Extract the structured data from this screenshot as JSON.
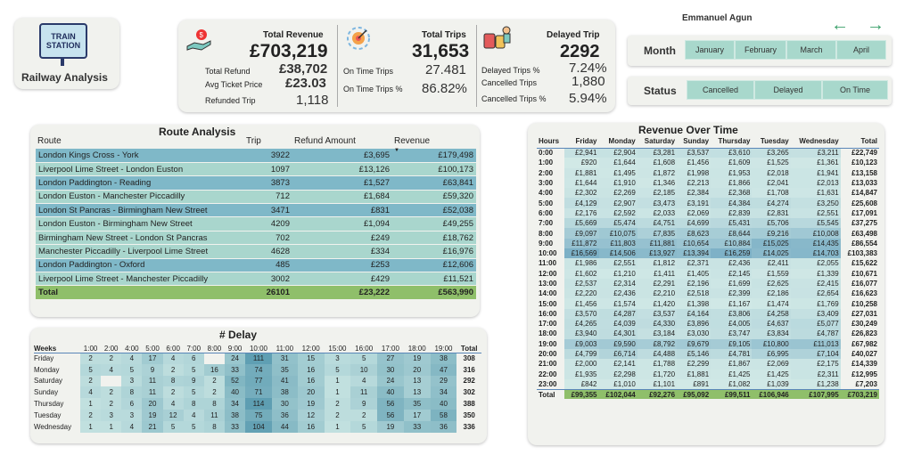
{
  "logo": {
    "line1": "TRAIN",
    "line2": "STATION",
    "title": "Railway Analysis"
  },
  "author": "Emmanuel Agun",
  "kpi": {
    "revenue": {
      "title": "Total Revenue",
      "value": "£703,219",
      "refund_label": "Total Refund",
      "refund": "£38,702",
      "avg_label": "Avg Ticket Price",
      "avg": "£23.03",
      "refunded_label": "Refunded Trip",
      "refunded": "1,118"
    },
    "trips": {
      "title": "Total Trips",
      "value": "31,653",
      "ontime_label": "On Time Trips",
      "ontime": "27.481",
      "ontime_pct_label": "On Time Trips %",
      "ontime_pct": "86.82%"
    },
    "delayed": {
      "title": "Delayed Trip",
      "value": "2292",
      "pct_label": "Delayed Trips %",
      "pct": "7.24%",
      "cancel_label": "Cancelled Trips",
      "cancel": "1,880",
      "cancel_pct_label": "Cancelled Trips %",
      "cancel_pct": "5.94%"
    }
  },
  "month": {
    "label": "Month",
    "options": [
      "January",
      "February",
      "March",
      "April"
    ]
  },
  "status": {
    "label": "Status",
    "options": [
      "Cancelled",
      "Delayed",
      "On Time"
    ]
  },
  "route": {
    "title": "Route Analysis",
    "headers": [
      "Route",
      "Trip",
      "Refund Amount",
      "Revenue"
    ],
    "rows": [
      [
        "London Kings Cross - York",
        "3922",
        "£3,695",
        "£179,498"
      ],
      [
        "Liverpool Lime Street - London Euston",
        "1097",
        "£13,126",
        "£100,173"
      ],
      [
        "London Paddington - Reading",
        "3873",
        "£1,527",
        "£63,841"
      ],
      [
        "London Euston - Manchester Piccadilly",
        "712",
        "£1,684",
        "£59,320"
      ],
      [
        "London St Pancras - Birmingham New Street",
        "3471",
        "£831",
        "£52,038"
      ],
      [
        "London Euston - Birmingham New Street",
        "4209",
        "£1,094",
        "£49,255"
      ],
      [
        "Birmingham New Street - London St Pancras",
        "702",
        "£249",
        "£18,762"
      ],
      [
        "Manchester Piccadilly - Liverpool Lime Street",
        "4628",
        "£334",
        "£16,976"
      ],
      [
        "London Paddington - Oxford",
        "485",
        "£253",
        "£12,606"
      ],
      [
        "Liverpool Lime Street - Manchester Piccadilly",
        "3002",
        "£429",
        "£11,521"
      ]
    ],
    "total": [
      "Total",
      "26101",
      "£23,222",
      "£563,990"
    ]
  },
  "delay": {
    "title": "# Delay",
    "corner": "Weeks",
    "headers": [
      "1:00",
      "2:00",
      "4:00",
      "5:00",
      "6:00",
      "7:00",
      "8:00",
      "9:00",
      "10:00",
      "11:00",
      "12:00",
      "15:00",
      "16:00",
      "17:00",
      "18:00",
      "19:00"
    ],
    "total_label": "Total",
    "rows": [
      {
        "day": "Friday",
        "vals": [
          "2",
          "2",
          "4",
          "17",
          "4",
          "6",
          "",
          "24",
          "111",
          "31",
          "15",
          "3",
          "5",
          "27",
          "19",
          "38"
        ],
        "total": "308"
      },
      {
        "day": "Monday",
        "vals": [
          "5",
          "4",
          "5",
          "9",
          "2",
          "5",
          "16",
          "33",
          "74",
          "35",
          "16",
          "5",
          "10",
          "30",
          "20",
          "47"
        ],
        "total": "316"
      },
      {
        "day": "Saturday",
        "vals": [
          "2",
          "",
          "3",
          "11",
          "8",
          "9",
          "2",
          "52",
          "77",
          "41",
          "16",
          "1",
          "4",
          "24",
          "13",
          "29"
        ],
        "total": "292"
      },
      {
        "day": "Sunday",
        "vals": [
          "4",
          "2",
          "8",
          "11",
          "2",
          "5",
          "2",
          "40",
          "71",
          "38",
          "20",
          "1",
          "11",
          "40",
          "13",
          "34"
        ],
        "total": "302"
      },
      {
        "day": "Thursday",
        "vals": [
          "1",
          "2",
          "6",
          "20",
          "4",
          "8",
          "8",
          "34",
          "114",
          "30",
          "19",
          "2",
          "9",
          "56",
          "35",
          "40"
        ],
        "total": "388"
      },
      {
        "day": "Tuesday",
        "vals": [
          "2",
          "3",
          "3",
          "19",
          "12",
          "4",
          "11",
          "38",
          "75",
          "36",
          "12",
          "2",
          "2",
          "56",
          "17",
          "58"
        ],
        "total": "350"
      },
      {
        "day": "Wednesday",
        "vals": [
          "1",
          "1",
          "4",
          "21",
          "5",
          "5",
          "8",
          "33",
          "104",
          "44",
          "16",
          "1",
          "5",
          "19",
          "33",
          "36"
        ],
        "total": "336"
      }
    ]
  },
  "revenue_time": {
    "title": "Revenue Over Time",
    "headers": [
      "Hours",
      "Friday",
      "Monday",
      "Saturday",
      "Sunday",
      "Thursday",
      "Tuesday",
      "Wednesday",
      "Total"
    ],
    "rows": [
      [
        "0:00",
        "£2,941",
        "£2,904",
        "£3,281",
        "£3,537",
        "£3,610",
        "£3,265",
        "£3,211",
        "£22,749"
      ],
      [
        "1:00",
        "£920",
        "£1,644",
        "£1,608",
        "£1,456",
        "£1,609",
        "£1,525",
        "£1,361",
        "£10,123"
      ],
      [
        "2:00",
        "£1,881",
        "£1,495",
        "£1,872",
        "£1,998",
        "£1,953",
        "£2,018",
        "£1,941",
        "£13,158"
      ],
      [
        "3:00",
        "£1,644",
        "£1,910",
        "£1,346",
        "£2,213",
        "£1,866",
        "£2,041",
        "£2,013",
        "£13,033"
      ],
      [
        "4:00",
        "£2,302",
        "£2,269",
        "£2,185",
        "£2,384",
        "£2,368",
        "£1,708",
        "£1,631",
        "£14,847"
      ],
      [
        "5:00",
        "£4,129",
        "£2,907",
        "£3,473",
        "£3,191",
        "£4,384",
        "£4,274",
        "£3,250",
        "£25,608"
      ],
      [
        "6:00",
        "£2,176",
        "£2,592",
        "£2,033",
        "£2,069",
        "£2,839",
        "£2,831",
        "£2,551",
        "£17,091"
      ],
      [
        "7:00",
        "£5,669",
        "£5,474",
        "£4,751",
        "£4,699",
        "£5,431",
        "£5,706",
        "£5,545",
        "£37,275"
      ],
      [
        "8:00",
        "£9,097",
        "£10,075",
        "£7,835",
        "£8,623",
        "£8,644",
        "£9,216",
        "£10,008",
        "£63,498"
      ],
      [
        "9:00",
        "£11,872",
        "£11,803",
        "£11,881",
        "£10,654",
        "£10,884",
        "£15,025",
        "£14,435",
        "£86,554"
      ],
      [
        "10:00",
        "£16,569",
        "£14,506",
        "£13,927",
        "£13,394",
        "£16,259",
        "£14,025",
        "£14,703",
        "£103,383"
      ],
      [
        "11:00",
        "£1,986",
        "£2,551",
        "£1,812",
        "£2,371",
        "£2,436",
        "£2,411",
        "£2,055",
        "£15,622"
      ],
      [
        "12:00",
        "£1,602",
        "£1,210",
        "£1,411",
        "£1,405",
        "£2,145",
        "£1,559",
        "£1,339",
        "£10,671"
      ],
      [
        "13:00",
        "£2,537",
        "£2,314",
        "£2,291",
        "£2,196",
        "£1,699",
        "£2,625",
        "£2,415",
        "£16,077"
      ],
      [
        "14:00",
        "£2,220",
        "£2,436",
        "£2,210",
        "£2,518",
        "£2,399",
        "£2,186",
        "£2,654",
        "£16,623"
      ],
      [
        "15:00",
        "£1,456",
        "£1,574",
        "£1,420",
        "£1,398",
        "£1,167",
        "£1,474",
        "£1,769",
        "£10,258"
      ],
      [
        "16:00",
        "£3,570",
        "£4,287",
        "£3,537",
        "£4,164",
        "£3,806",
        "£4,258",
        "£3,409",
        "£27,031"
      ],
      [
        "17:00",
        "£4,265",
        "£4,039",
        "£4,330",
        "£3,896",
        "£4,005",
        "£4,637",
        "£5,077",
        "£30,249"
      ],
      [
        "18:00",
        "£3,940",
        "£4,301",
        "£3,184",
        "£3,030",
        "£3,747",
        "£3,834",
        "£4,787",
        "£26,823"
      ],
      [
        "19:00",
        "£9,003",
        "£9,590",
        "£8,792",
        "£9,679",
        "£9,105",
        "£10,800",
        "£11,013",
        "£67,982"
      ],
      [
        "20:00",
        "£4,799",
        "£6,714",
        "£4,488",
        "£5,146",
        "£4,781",
        "£6,995",
        "£7,104",
        "£40,027"
      ],
      [
        "21:00",
        "£2,000",
        "£2,141",
        "£1,788",
        "£2,299",
        "£1,867",
        "£2,069",
        "£2,175",
        "£14,339"
      ],
      [
        "22:00",
        "£1,935",
        "£2,298",
        "£1,720",
        "£1,881",
        "£1,425",
        "£1,425",
        "£2,311",
        "£12,995"
      ],
      [
        "23:00",
        "£842",
        "£1,010",
        "£1,101",
        "£891",
        "£1,082",
        "£1,039",
        "£1,238",
        "£7,203"
      ]
    ],
    "total": [
      "Total",
      "£99,355",
      "£102,044",
      "£92,276",
      "£95,092",
      "£99,511",
      "£106,946",
      "£107,995",
      "£703,219"
    ]
  }
}
